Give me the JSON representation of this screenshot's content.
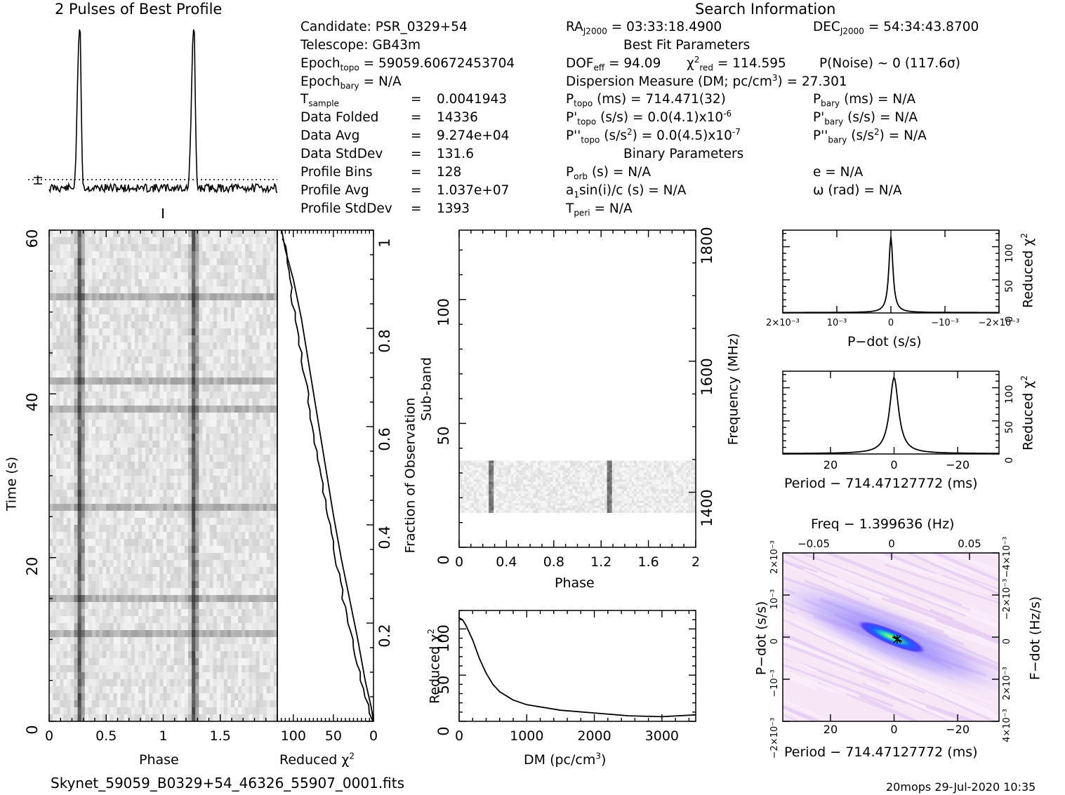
{
  "titles": {
    "profile": "2 Pulses of Best Profile",
    "search": "Search Information",
    "best_fit": "Best Fit Parameters",
    "binary": "Binary Parameters"
  },
  "info": {
    "candidate": "Candidate:  PSR_0329+54",
    "telescope": "Telescope:  GB43m",
    "epoch_topo": "= 59059.60672453704",
    "epoch_bary": "= N/A",
    "rows": [
      {
        "label": "T",
        "sub": "sample",
        "eq": "=",
        "value": "0.0041943"
      },
      {
        "label": "Data Folded",
        "eq": "=",
        "value": "14336"
      },
      {
        "label": "Data Avg",
        "eq": "=",
        "value": "9.274e+04"
      },
      {
        "label": "Data StdDev",
        "eq": "=",
        "value": "131.6"
      },
      {
        "label": "Profile Bins",
        "eq": "=",
        "value": "128"
      },
      {
        "label": "Profile Avg",
        "eq": "=",
        "value": "1.037e+07"
      },
      {
        "label": "Profile StdDev",
        "eq": "=",
        "value": "1393"
      }
    ],
    "ra": "= 03:33:18.4900",
    "dec": "= 54:34:43.8700",
    "dof": "= 94.09",
    "chi2red": "= 114.595",
    "pnoise": "P(Noise) ~ 0   (117.6σ)",
    "dm_label": "Dispersion Measure (DM; pc/cm",
    "dm_value": ") = 27.301",
    "p_topo": "(ms) =  714.471(32)",
    "pdot_topo": "(s/s) = 0.0(4.1)x10",
    "pdot_exp": "-6",
    "pddot_topo": "(s/s",
    "pddot_val": ") = 0.0(4.5)x10",
    "pddot_exp": "-7",
    "p_bary": "(ms) = N/A",
    "pdot_bary": "(s/s) = N/A",
    "pddot_bary": "(s/s",
    "pddot_bary_val": ") = N/A",
    "porb": "(s) = N/A",
    "a1sini": "sin(i)/c (s) = N/A",
    "tperi": "= N/A",
    "ecc": "e = N/A",
    "omega": "ω (rad) = N/A"
  },
  "footer": {
    "filename": "Skynet_59059_B0329+54_46326_55907_0001.fits",
    "stamp": "20mops 29-Jul-2020 10:35"
  },
  "chart_data": [
    {
      "type": "line",
      "id": "profile",
      "title": "2 Pulses of Best Profile",
      "x_range": [
        0,
        2
      ],
      "pulse_phases": [
        0.27,
        1.27
      ]
    },
    {
      "type": "heatmap",
      "id": "time-phase",
      "xlabel": "Phase",
      "ylabel": "Time (s)",
      "xlim": [
        0,
        2
      ],
      "ylim": [
        0,
        60
      ],
      "xticks": [
        "0",
        "0.5",
        "1",
        "1.5"
      ],
      "yticks": [
        "0",
        "20",
        "40",
        "60"
      ],
      "pulse_phases": [
        0.27,
        1.27
      ]
    },
    {
      "type": "line",
      "id": "chi2-vs-time",
      "xlabel": "Reduced χ2",
      "ylabel": "Fraction of Observation",
      "xlim": [
        120,
        0
      ],
      "ylim": [
        0,
        1
      ],
      "xticks": [
        "100",
        "50",
        "0"
      ],
      "yticks": [
        "0.2",
        "0.4",
        "0.6",
        "0.8",
        "1"
      ],
      "points": [
        [
          0,
          0
        ],
        [
          3,
          0.03
        ],
        [
          10,
          0.08
        ],
        [
          20,
          0.17
        ],
        [
          30,
          0.25
        ],
        [
          40,
          0.33
        ],
        [
          50,
          0.42
        ],
        [
          60,
          0.52
        ],
        [
          70,
          0.62
        ],
        [
          80,
          0.72
        ],
        [
          90,
          0.82
        ],
        [
          100,
          0.9
        ],
        [
          110,
          0.96
        ],
        [
          114.6,
          1.0
        ]
      ]
    },
    {
      "type": "heatmap",
      "id": "subband-phase",
      "xlabel": "Phase",
      "ylabel": "Sub-band",
      "y2label": "Frequency (MHz)",
      "xlim": [
        0,
        2
      ],
      "ylim": [
        0,
        128
      ],
      "xticks": [
        "0",
        "0.4",
        "0.8",
        "1.2",
        "1.6",
        "2"
      ],
      "yticks": [
        "0",
        "50",
        "100"
      ],
      "y2ticks": [
        "1400",
        "1600",
        "1800"
      ],
      "active_subbands": [
        14,
        35
      ],
      "pulse_phases": [
        0.27,
        1.27
      ]
    },
    {
      "type": "line",
      "id": "chi2-vs-dm",
      "xlabel": "DM (pc/cm",
      "ylabel": "Reduced χ2",
      "xlim": [
        0,
        3500
      ],
      "ylim": [
        0,
        120
      ],
      "xticks": [
        "0",
        "1000",
        "2000",
        "3000"
      ],
      "yticks": [
        "0",
        "50",
        "100"
      ],
      "points": [
        [
          0,
          112
        ],
        [
          50,
          110
        ],
        [
          100,
          104
        ],
        [
          200,
          88
        ],
        [
          300,
          68
        ],
        [
          400,
          52
        ],
        [
          500,
          40
        ],
        [
          600,
          32
        ],
        [
          800,
          23
        ],
        [
          1000,
          18
        ],
        [
          1500,
          12
        ],
        [
          2000,
          9
        ],
        [
          2500,
          6
        ],
        [
          3000,
          5
        ],
        [
          3500,
          7
        ]
      ]
    },
    {
      "type": "line",
      "id": "chi2-vs-pdot",
      "xlabel": "P−dot (s/s)",
      "ylabel": "Reduced χ2",
      "xlim": [
        0.002,
        -0.002
      ],
      "ylim": [
        0,
        125
      ],
      "xticks": [
        "2×10⁻³",
        "10⁻³",
        "0",
        "−10⁻³",
        "−2×10⁻³"
      ],
      "yticks": [
        "0",
        "50",
        "100"
      ],
      "peak": [
        0,
        114.6
      ]
    },
    {
      "type": "line",
      "id": "chi2-vs-period",
      "xlabel": "Period − 714.47127772 (ms)",
      "ylabel": "Reduced χ2",
      "xlim": [
        35,
        -33
      ],
      "ylim": [
        0,
        125
      ],
      "xticks": [
        "20",
        "0",
        "−20"
      ],
      "yticks": [
        "0",
        "50",
        "100"
      ],
      "peak": [
        0,
        114.6
      ]
    },
    {
      "type": "heatmap",
      "id": "p-pdot",
      "title": "Freq − 1.399636 (Hz)",
      "xlabel": "Period − 714.47127772 (ms)",
      "ylabel": "P−dot (s/s)",
      "y2label": "F−dot (Hz/s)",
      "xlim": [
        35,
        -33
      ],
      "ylim": [
        -0.002,
        0.002
      ],
      "xticks": [
        "20",
        "0",
        "−20"
      ],
      "x2ticks": [
        "−0.05",
        "0",
        "0.05"
      ],
      "yticks": [
        "2×10⁻³",
        "10⁻³",
        "0",
        "−10⁻³",
        "−2×10⁻³"
      ],
      "y2ticks": [
        "−4×10⁻³",
        "−2×10⁻³",
        "0",
        "2×10⁻³",
        "4×10⁻³"
      ]
    }
  ]
}
